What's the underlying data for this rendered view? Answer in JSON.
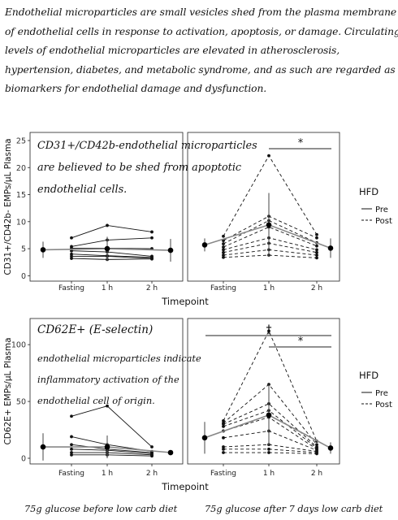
{
  "intro_lines": [
    "Endothelial microparticles are small vesicles shed from the plasma membrane",
    "of endothelial cells in response to activation, apoptosis, or damage. Circulating",
    "levels of endothelial microparticles are elevated in atherosclerosis,",
    "hypertension, diabetes, and metabolic syndrome, and as such are regarded as",
    "biomarkers for endothelial damage and dysfunction."
  ],
  "annotations": {
    "panel1_lines": [
      "CD31+/CD42b-endothelial microparticles",
      "are believed to be shed from apoptotic",
      "endothelial cells."
    ],
    "panel2_title": "CD62E+ (E-selectin)",
    "panel2_lines": [
      "endothelial microparticles indicate",
      "inflammatory activation of the",
      "endothelial cell of origin."
    ]
  },
  "captions": {
    "left": "75g glucose before low carb diet",
    "right": "75g glucose after 7 days low carb diet"
  },
  "legend": {
    "title": "HFD",
    "pre": "Pre",
    "post": "Post"
  },
  "chart_data": [
    {
      "type": "line",
      "ylabel": "CD31+/CD42b- EMPs/μL Plasma",
      "xlabel": "Timepoint",
      "categories": [
        "Fasting",
        "1 h",
        "2 h"
      ],
      "y_ticks": [
        "0",
        "5",
        "10",
        "15",
        "20",
        "25"
      ],
      "ylim": [
        -1,
        26.5
      ],
      "significance": [
        {
          "label": "*",
          "from": "1 h",
          "to": "2 h"
        }
      ],
      "pre": {
        "subjects": [
          [
            7.0,
            9.3,
            8.1
          ],
          [
            5.4,
            6.6,
            7.0
          ],
          [
            5.1,
            5.1,
            5.0
          ],
          [
            4.6,
            4.4,
            3.6
          ],
          [
            4.0,
            3.7,
            3.4
          ],
          [
            3.6,
            3.6,
            3.2
          ],
          [
            3.2,
            3.0,
            3.1
          ]
        ],
        "mean": [
          4.8,
          5.0,
          4.7
        ],
        "error": [
          1.5,
          2.2,
          2.1
        ]
      },
      "post": {
        "subjects": [
          [
            7.3,
            22.2,
            7.6
          ],
          [
            6.5,
            11.0,
            7.0
          ],
          [
            5.9,
            10.2,
            6.1
          ],
          [
            5.3,
            9.0,
            5.5
          ],
          [
            4.8,
            7.0,
            4.8
          ],
          [
            4.3,
            6.0,
            4.3
          ],
          [
            3.8,
            4.8,
            3.8
          ],
          [
            3.4,
            3.8,
            3.3
          ]
        ],
        "mean": [
          5.7,
          9.4,
          5.1
        ],
        "error": [
          1.2,
          5.9,
          1.8
        ]
      }
    },
    {
      "type": "line",
      "ylabel": "CD62E+ EMPs/μL Plasma",
      "xlabel": "Timepoint",
      "categories": [
        "Fasting",
        "1 h",
        "2 h"
      ],
      "y_ticks": [
        "0",
        "50",
        "100"
      ],
      "ylim": [
        -5,
        123
      ],
      "significance": [
        {
          "label": "†",
          "from": "Fasting",
          "to": "2 h"
        },
        {
          "label": "*",
          "from": "1 h",
          "to": "2 h"
        }
      ],
      "pre": {
        "subjects": [
          [
            37,
            46,
            10
          ],
          [
            19,
            12,
            6
          ],
          [
            12,
            8,
            5
          ],
          [
            8,
            7,
            4
          ],
          [
            5,
            5,
            3
          ],
          [
            3,
            3,
            2
          ]
        ],
        "mean": [
          10,
          10,
          5
        ],
        "error": [
          12,
          10,
          2
        ]
      },
      "post": {
        "subjects": [
          [
            33,
            112,
            15
          ],
          [
            31,
            65,
            12
          ],
          [
            30,
            48,
            10
          ],
          [
            28,
            42,
            9
          ],
          [
            24,
            36,
            8
          ],
          [
            18,
            24,
            7
          ],
          [
            10,
            12,
            6
          ],
          [
            8,
            8,
            5
          ],
          [
            5,
            5,
            4
          ]
        ],
        "mean": [
          18,
          38,
          9
        ],
        "error": [
          14,
          27,
          5
        ]
      }
    }
  ]
}
